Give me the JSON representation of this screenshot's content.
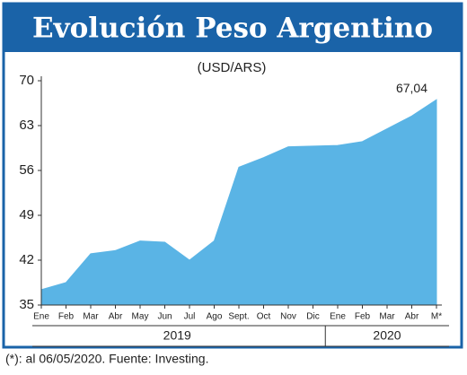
{
  "chart_data": {
    "type": "area",
    "title": "Evolución Peso Argentino",
    "subtitle": "(USD/ARS)",
    "categories": [
      "Ene",
      "Feb",
      "Mar",
      "Abr",
      "May",
      "Jun",
      "Jul",
      "Ago",
      "Sept.",
      "Oct",
      "Nov",
      "Dic",
      "Ene",
      "Feb",
      "Mar",
      "Abr",
      "M*"
    ],
    "x_groups": [
      "2019",
      "2020"
    ],
    "values": [
      37.4,
      38.5,
      43,
      43.5,
      45,
      44.8,
      42,
      45,
      56.5,
      58,
      59.7,
      59.8,
      59.9,
      60.5,
      62.5,
      64.5,
      67.04
    ],
    "value_labels": [
      null,
      null,
      null,
      null,
      null,
      null,
      null,
      null,
      null,
      null,
      null,
      null,
      null,
      null,
      null,
      null,
      "67,04"
    ],
    "color": "#5ab4e5",
    "ylim": [
      35,
      70
    ],
    "yticks": [
      35,
      42,
      49,
      56,
      63,
      70
    ],
    "note": "(*): al 06/05/2020. Fuente: Investing."
  }
}
